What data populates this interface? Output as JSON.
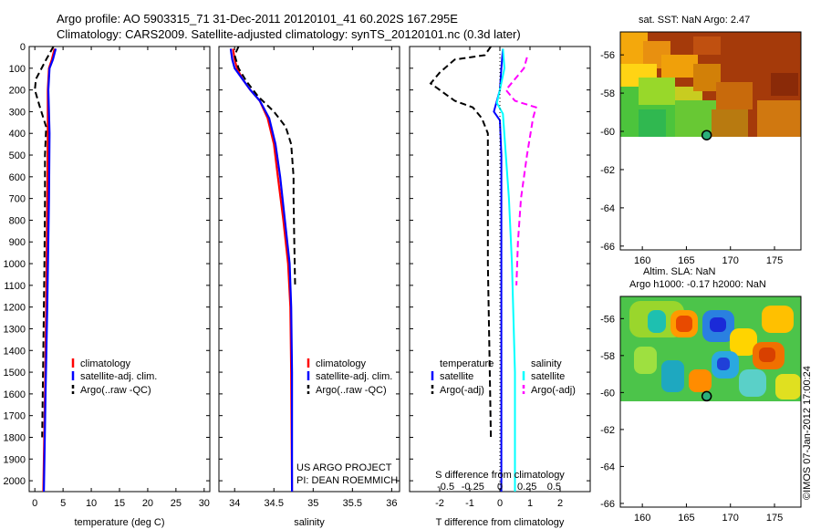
{
  "title_line1": "Argo profile: AO 5903315_71 31-Dec-2011 20120101_41 60.202S 167.295E",
  "title_line2": "Climatology: CARS2009. Satellite-adjusted climatology: synTS_20120101.nc (0.3d later)",
  "side_label": "©IMOS 07-Jan-2012 17:00:24",
  "project_line1": "US ARGO PROJECT",
  "project_line2": "PI: DEAN ROEMMICH",
  "colors": {
    "climatology": "#ff0000",
    "satellite": "#0000ff",
    "argo": "#000000",
    "sat_salinity": "#00ffff",
    "argo_salinity": "#ff00ff"
  },
  "chart_data": [
    {
      "type": "line",
      "xlabel": "temperature (deg C)",
      "xlim": [
        -1,
        31
      ],
      "ylim": [
        2050,
        0
      ],
      "xticks": [
        0,
        5,
        10,
        15,
        20,
        25,
        30
      ],
      "yticks": [
        0,
        100,
        200,
        300,
        400,
        500,
        600,
        700,
        800,
        900,
        1000,
        1100,
        1200,
        1300,
        1400,
        1500,
        1600,
        1700,
        1800,
        1900,
        2000
      ],
      "legend": [
        "climatology",
        "satellite-adj. clim.",
        "Argo(..raw -QC)"
      ],
      "series": [
        {
          "name": "climatology",
          "points": [
            [
              3.5,
              10
            ],
            [
              3,
              60
            ],
            [
              2.5,
              100
            ],
            [
              2.3,
              200
            ],
            [
              2.3,
              400
            ],
            [
              2.2,
              700
            ],
            [
              2,
              1200
            ],
            [
              1.8,
              1600
            ],
            [
              1.5,
              2050
            ]
          ]
        },
        {
          "name": "satellite-adj. clim.",
          "points": [
            [
              3.7,
              10
            ],
            [
              3.2,
              60
            ],
            [
              2.6,
              100
            ],
            [
              2.4,
              200
            ],
            [
              2.6,
              400
            ],
            [
              2.5,
              700
            ],
            [
              2.2,
              1200
            ],
            [
              1.9,
              1600
            ],
            [
              1.6,
              2050
            ]
          ]
        },
        {
          "name": "Argo(..raw -QC)",
          "points": [
            [
              3.3,
              0
            ],
            [
              2,
              60
            ],
            [
              0.2,
              150
            ],
            [
              0,
              200
            ],
            [
              0.8,
              270
            ],
            [
              2,
              370
            ],
            [
              1.8,
              500
            ],
            [
              1.8,
              700
            ],
            [
              1.7,
              1000
            ],
            [
              1.5,
              1400
            ],
            [
              1.3,
              1800
            ]
          ]
        }
      ]
    },
    {
      "type": "line",
      "xlabel": "salinity",
      "xlim": [
        33.8,
        36.1
      ],
      "ylim": [
        2050,
        0
      ],
      "xticks": [
        34,
        34.5,
        35,
        35.5,
        36
      ],
      "legend": [
        "climatology",
        "satellite-adj. clim.",
        "Argo(..raw -QC)"
      ],
      "series": [
        {
          "name": "climatology",
          "points": [
            [
              33.98,
              10
            ],
            [
              34,
              60
            ],
            [
              34.03,
              100
            ],
            [
              34.1,
              150
            ],
            [
              34.2,
              200
            ],
            [
              34.32,
              250
            ],
            [
              34.42,
              330
            ],
            [
              34.5,
              450
            ],
            [
              34.55,
              600
            ],
            [
              34.62,
              800
            ],
            [
              34.68,
              1000
            ],
            [
              34.71,
              1200
            ],
            [
              34.72,
              1500
            ],
            [
              34.73,
              2050
            ]
          ]
        },
        {
          "name": "satellite-adj. clim.",
          "points": [
            [
              33.95,
              10
            ],
            [
              33.97,
              60
            ],
            [
              34,
              100
            ],
            [
              34.1,
              150
            ],
            [
              34.2,
              200
            ],
            [
              34.32,
              250
            ],
            [
              34.44,
              330
            ],
            [
              34.52,
              450
            ],
            [
              34.58,
              600
            ],
            [
              34.64,
              800
            ],
            [
              34.7,
              1000
            ],
            [
              34.72,
              1200
            ],
            [
              34.73,
              1500
            ],
            [
              34.73,
              2050
            ]
          ]
        },
        {
          "name": "Argo(..raw -QC)",
          "points": [
            [
              34.05,
              0
            ],
            [
              34,
              40
            ],
            [
              34.05,
              100
            ],
            [
              34.15,
              160
            ],
            [
              34.3,
              230
            ],
            [
              34.5,
              300
            ],
            [
              34.65,
              370
            ],
            [
              34.72,
              450
            ],
            [
              34.75,
              600
            ],
            [
              34.75,
              700
            ],
            [
              34.76,
              900
            ],
            [
              34.77,
              1100
            ]
          ]
        }
      ]
    },
    {
      "type": "line",
      "xlabel": "T difference from climatology",
      "xlabel2": "S difference from climatology",
      "xlim": [
        -3,
        3
      ],
      "ylim": [
        2050,
        0
      ],
      "xticks": [
        -2,
        -1,
        0,
        1,
        2
      ],
      "xticks_S": [
        -0.5,
        -0.25,
        0,
        0.25,
        0.5
      ],
      "legend_T": [
        "temperature",
        "satellite",
        "Argo(-adj)"
      ],
      "legend_S": [
        "salinity",
        "satellite",
        "Argo(-adj)"
      ],
      "series": [
        {
          "name": "satellite",
          "points": [
            [
              0.1,
              10
            ],
            [
              0.05,
              100
            ],
            [
              0,
              200
            ],
            [
              -0.2,
              300
            ],
            [
              0,
              340
            ],
            [
              0.05,
              500
            ],
            [
              0.05,
              1000
            ],
            [
              0.05,
              1500
            ],
            [
              0.05,
              2050
            ]
          ]
        },
        {
          "name": "Argo(-adj)",
          "points": [
            [
              -0.3,
              0
            ],
            [
              -0.5,
              40
            ],
            [
              -1.5,
              60
            ],
            [
              -2,
              120
            ],
            [
              -2.3,
              170
            ],
            [
              -2,
              200
            ],
            [
              -1.5,
              250
            ],
            [
              -0.9,
              280
            ],
            [
              -0.6,
              330
            ],
            [
              -0.4,
              400
            ],
            [
              -0.4,
              600
            ],
            [
              -0.4,
              1000
            ],
            [
              -0.35,
              1400
            ],
            [
              -0.3,
              1800
            ]
          ]
        },
        {
          "name": "satellite",
          "points": [
            [
              0.1,
              10
            ],
            [
              0.15,
              100
            ],
            [
              0,
              200
            ],
            [
              -0.1,
              260
            ],
            [
              0.1,
              310
            ],
            [
              0.3,
              700
            ],
            [
              0.4,
              1000
            ],
            [
              0.5,
              1500
            ],
            [
              0.5,
              2050
            ]
          ]
        },
        {
          "name": "Argo(-adj)",
          "points": [
            [
              0.9,
              50
            ],
            [
              0.8,
              100
            ],
            [
              0.2,
              200
            ],
            [
              0.5,
              250
            ],
            [
              1.2,
              280
            ],
            [
              1.1,
              330
            ],
            [
              0.9,
              500
            ],
            [
              0.7,
              700
            ],
            [
              0.6,
              900
            ],
            [
              0.55,
              1100
            ]
          ]
        }
      ]
    },
    {
      "type": "heatmap",
      "title": "sat. SST: NaN Argo: 2.47",
      "xlim": [
        157.5,
        178
      ],
      "ylim": [
        -66.2,
        -54.8
      ],
      "xticks": [
        160,
        165,
        170,
        175
      ],
      "yticks": [
        -56,
        -58,
        -60,
        -62,
        -64,
        -66
      ],
      "marker": [
        167.3,
        -60.2
      ]
    },
    {
      "type": "heatmap",
      "title_line1": "Altim. SLA: NaN",
      "title_line2": "Argo h1000: -0.17 h2000: NaN",
      "xlim": [
        157.5,
        178
      ],
      "ylim": [
        -66.2,
        -54.8
      ],
      "xticks": [
        160,
        165,
        170,
        175
      ],
      "yticks": [
        -56,
        -58,
        -60,
        -62,
        -64,
        -66
      ],
      "marker": [
        167.3,
        -60.2
      ]
    }
  ]
}
